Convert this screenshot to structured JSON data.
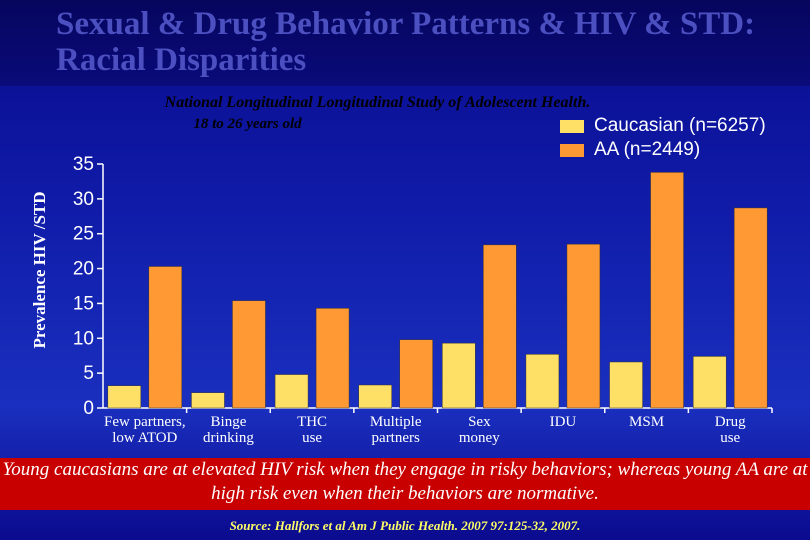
{
  "title": "Sexual & Drug Behavior Patterns & HIV & STD:\nRacial Disparities",
  "subtitle_line1": "National Longitudinal Longitudinal Study of Adolescent Health.",
  "subtitle_line2": "18 to 26 years old",
  "banner_text": "Young caucasians are at elevated HIV risk when they engage in risky behaviors; whereas young AA are at high risk even when their behaviors are normative.",
  "source_text": "Source: Hallfors et al Am J Public Health. 2007 97:125-32, 2007.",
  "colors": {
    "caucasian": "#ffe066",
    "aa": "#ff9933"
  },
  "chart_data": {
    "type": "bar",
    "ylabel": "Prevalence HIV /STD",
    "ylim": [
      0,
      35
    ],
    "yticks": [
      0,
      5,
      10,
      15,
      20,
      25,
      30,
      35
    ],
    "categories": [
      [
        "Few partners,",
        "low ATOD"
      ],
      [
        "Binge",
        "drinking"
      ],
      [
        "THC",
        "use"
      ],
      [
        "Multiple",
        "partners"
      ],
      [
        "Sex",
        "money"
      ],
      [
        "IDU"
      ],
      [
        "MSM"
      ],
      [
        "Drug",
        "use"
      ]
    ],
    "series": [
      {
        "name": "Caucasian (n=6257)",
        "values": [
          3.2,
          2.2,
          4.8,
          3.3,
          9.3,
          7.7,
          6.6,
          7.4
        ]
      },
      {
        "name": "AA (n=2449)",
        "values": [
          20.3,
          15.4,
          14.3,
          9.8,
          23.4,
          23.5,
          33.8,
          28.7
        ]
      }
    ]
  }
}
